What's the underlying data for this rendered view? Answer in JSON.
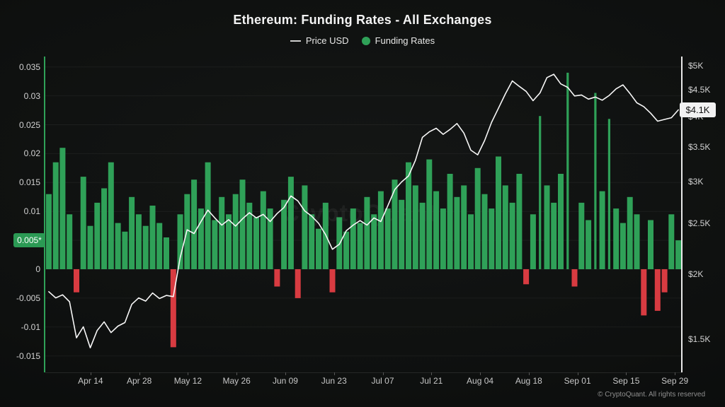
{
  "title": "Ethereum: Funding Rates - All Exchanges",
  "legend": {
    "price": {
      "label": "Price USD",
      "color": "#cfcfcf"
    },
    "funding": {
      "label": "Funding Rates",
      "color": "#2fa158"
    }
  },
  "watermark": "CryptoQuant",
  "copyright": "© CryptoQuant. All rights reserved",
  "current_labels": {
    "funding": "0.005*",
    "price": "$4.1K"
  },
  "colors": {
    "bar_positive": "#2fa158",
    "bar_negative": "#d83b41",
    "price_line": "#f7f7f7",
    "grid": "rgba(255,255,255,0.05)"
  },
  "chart_data": {
    "type": [
      "bar",
      "line"
    ],
    "title": "Ethereum: Funding Rates - All Exchanges",
    "x_start": "Apr 01",
    "x_end": "Sep 30",
    "sample_interval_days": 2,
    "x_tick_labels": [
      {
        "label": "Apr 14",
        "day": 13
      },
      {
        "label": "Apr 28",
        "day": 27
      },
      {
        "label": "May 12",
        "day": 41
      },
      {
        "label": "May 26",
        "day": 55
      },
      {
        "label": "Jun 09",
        "day": 69
      },
      {
        "label": "Jun 23",
        "day": 83
      },
      {
        "label": "Jul 07",
        "day": 97
      },
      {
        "label": "Jul 21",
        "day": 111
      },
      {
        "label": "Aug 04",
        "day": 125
      },
      {
        "label": "Aug 18",
        "day": 139
      },
      {
        "label": "Sep 01",
        "day": 153
      },
      {
        "label": "Sep 15",
        "day": 167
      },
      {
        "label": "Sep 29",
        "day": 181
      }
    ],
    "left_axis": {
      "name": "Funding Rates",
      "scale": "linear",
      "min": -0.0178,
      "max": 0.0368,
      "ticks": [
        0.035,
        0.03,
        0.025,
        0.02,
        0.015,
        0.01,
        0,
        -0.005,
        -0.01,
        -0.015
      ],
      "tick_labels": [
        "0.035",
        "0.03",
        "0.025",
        "0.02",
        "0.015",
        "0.01",
        "0",
        "-0.005",
        "-0.01",
        "-0.015"
      ],
      "current_value": 0.005,
      "current_label": "0.005*"
    },
    "right_axis": {
      "name": "Price USD",
      "scale": "log",
      "min": 1350,
      "max": 5300,
      "ticks": [
        5000,
        4500,
        4000,
        3500,
        3000,
        2500,
        2000,
        1500
      ],
      "tick_labels": [
        "$5K",
        "$4.5K",
        "$4K",
        "$3.5K",
        "$3K",
        "$2.5K",
        "$2K",
        "$1.5K"
      ],
      "current_value": 4120,
      "current_label": "$4.1K"
    },
    "series": [
      {
        "name": "Funding Rates",
        "type": "bar",
        "axis": "left",
        "values": [
          0.013,
          0.0185,
          0.021,
          0.0095,
          -0.004,
          0.016,
          0.0075,
          0.0115,
          0.014,
          0.0185,
          0.008,
          0.0065,
          0.0125,
          0.0095,
          0.0075,
          0.011,
          0.008,
          0.0055,
          -0.0135,
          0.0095,
          0.013,
          0.0155,
          0.0105,
          0.0185,
          0.0085,
          0.0125,
          0.0095,
          0.013,
          0.0155,
          0.0115,
          0.009,
          0.0135,
          0.0105,
          -0.003,
          0.012,
          0.016,
          -0.005,
          0.0145,
          0.0095,
          0.007,
          0.0115,
          -0.004,
          0.009,
          0.0065,
          0.0105,
          0.008,
          0.0125,
          0.0095,
          0.0135,
          0.0105,
          0.0155,
          0.012,
          0.0185,
          0.0145,
          0.0115,
          0.019,
          0.0135,
          0.0105,
          0.0165,
          0.0125,
          0.0145,
          0.0095,
          0.0175,
          0.013,
          0.0105,
          0.0195,
          0.0145,
          0.0115,
          0.0165,
          -0.0026,
          0.0095,
          0.0265,
          0.0145,
          0.0115,
          0.0165,
          0.034,
          -0.003,
          0.0115,
          0.0085,
          0.0305,
          0.0135,
          0.026,
          0.0105,
          0.008,
          0.0125,
          0.0095,
          -0.008,
          0.0085,
          -0.0072,
          -0.004,
          0.0095,
          0.005
        ]
      },
      {
        "name": "Price USD",
        "type": "line",
        "axis": "right",
        "values": [
          1850,
          1800,
          1825,
          1770,
          1510,
          1585,
          1445,
          1560,
          1620,
          1545,
          1590,
          1615,
          1750,
          1800,
          1775,
          1840,
          1795,
          1820,
          1810,
          2150,
          2430,
          2390,
          2520,
          2650,
          2560,
          2480,
          2540,
          2470,
          2550,
          2620,
          2560,
          2600,
          2520,
          2610,
          2680,
          2820,
          2760,
          2640,
          2580,
          2500,
          2380,
          2230,
          2280,
          2420,
          2480,
          2530,
          2480,
          2560,
          2520,
          2700,
          2900,
          3000,
          3080,
          3300,
          3650,
          3740,
          3800,
          3700,
          3780,
          3880,
          3720,
          3450,
          3380,
          3600,
          3900,
          4150,
          4420,
          4680,
          4570,
          4470,
          4290,
          4440,
          4750,
          4820,
          4620,
          4550,
          4380,
          4400,
          4320,
          4360,
          4300,
          4390,
          4520,
          4600,
          4430,
          4250,
          4180,
          4060,
          3920,
          3950,
          3980,
          4120
        ]
      }
    ]
  }
}
